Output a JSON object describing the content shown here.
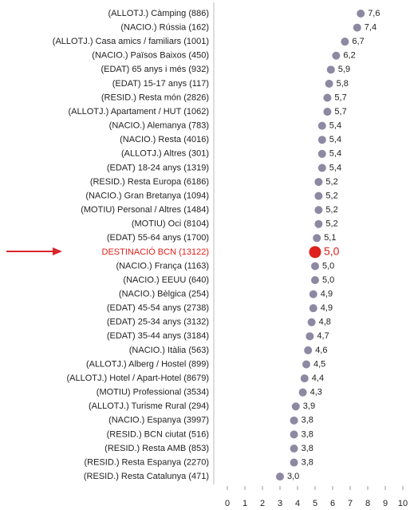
{
  "chart_data": {
    "type": "dot",
    "categories": [
      "(ALLOTJ.) Càmping (886)",
      "(NACIO.) Rússia (162)",
      "(ALLOTJ.) Casa amics / familiars (1001)",
      "(NACIO.) Països Baixos (450)",
      "(EDAT) 65 anys i més (932)",
      "(EDAT) 15-17 anys (117)",
      "(RESID.) Resta món (2826)",
      "(ALLOTJ.) Apartament / HUT (1062)",
      "(NACIO.) Alemanya (783)",
      "(NACIO.) Resta (4016)",
      "(ALLOTJ.) Altres (301)",
      "(EDAT) 18-24 anys (1319)",
      "(RESID.) Resta Europa (6186)",
      "(NACIO.) Gran Bretanya (1094)",
      "(MOTIU) Personal / Altres (1484)",
      "(MOTIU) Oci (8104)",
      "(EDAT) 55-64 anys (1700)",
      "DESTINACIÓ BCN (13122)",
      "(NACIO.) França (1163)",
      "(NACIO.) EEUU (640)",
      "(NACIO.) Bèlgica (254)",
      "(EDAT) 45-54 anys (2738)",
      "(EDAT) 25-34 anys (3132)",
      "(EDAT) 35-44 anys (3184)",
      "(NACIO.) Itàlia (563)",
      "(ALLOTJ.) Alberg / Hostel (899)",
      "(ALLOTJ.) Hotel / Apart-Hotel (8679)",
      "(MOTIU) Professional (3534)",
      "(ALLOTJ.) Turisme Rural (294)",
      "(NACIO.) Espanya (3997)",
      "(RESID.) BCN ciutat (516)",
      "(RESID.) Resta AMB (853)",
      "(RESID.) Resta Espanya (2270)",
      "(RESID.) Resta Catalunya (471)"
    ],
    "values": [
      7.6,
      7.4,
      6.7,
      6.2,
      5.9,
      5.8,
      5.7,
      5.7,
      5.4,
      5.4,
      5.4,
      5.4,
      5.2,
      5.2,
      5.2,
      5.2,
      5.1,
      5.0,
      5.0,
      5.0,
      4.9,
      4.9,
      4.8,
      4.7,
      4.6,
      4.5,
      4.4,
      4.3,
      3.9,
      3.8,
      3.8,
      3.8,
      3.8,
      3.0
    ],
    "value_labels": [
      "7,6",
      "7,4",
      "6,7",
      "6,2",
      "5,9",
      "5,8",
      "5,7",
      "5,7",
      "5,4",
      "5,4",
      "5,4",
      "5,4",
      "5,2",
      "5,2",
      "5,2",
      "5,2",
      "5,1",
      "5,0",
      "5,0",
      "5,0",
      "4,9",
      "4,9",
      "4,8",
      "4,7",
      "4,6",
      "4,5",
      "4,4",
      "4,3",
      "3,9",
      "3,8",
      "3,8",
      "3,8",
      "3,8",
      "3,0"
    ],
    "color": "#8e88a3",
    "highlight": 17,
    "highlight_color": "#e0201b",
    "xlim": [
      0,
      10
    ],
    "xticks": [
      0,
      1,
      2,
      3,
      4,
      5,
      6,
      7,
      8,
      9,
      10
    ]
  }
}
